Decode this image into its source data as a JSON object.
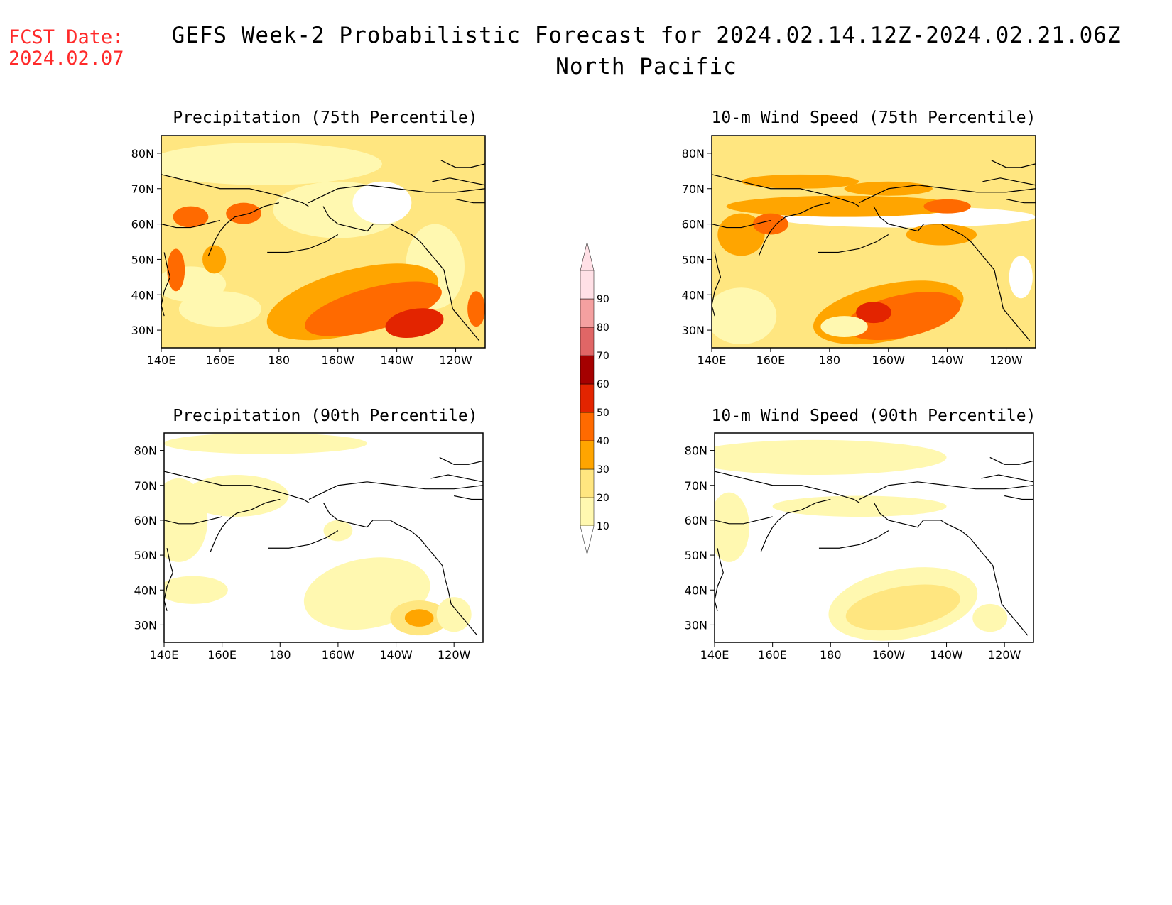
{
  "header": {
    "fcst_label": "FCST Date:",
    "fcst_date": "2024.02.07",
    "title_line1": "GEFS Week-2 Probabilistic Forecast for 2024.02.14.12Z-2024.02.21.06Z",
    "title_line2": "North Pacific"
  },
  "panels": [
    {
      "id": "p75",
      "title": "Precipitation (75th Percentile)"
    },
    {
      "id": "w75",
      "title": "10-m Wind Speed (75th Percentile)"
    },
    {
      "id": "p90",
      "title": "Precipitation (90th Percentile)"
    },
    {
      "id": "w90",
      "title": "10-m Wind Speed (90th Percentile)"
    }
  ],
  "axes": {
    "lat_labels": [
      "80N",
      "70N",
      "60N",
      "50N",
      "40N",
      "30N"
    ],
    "lat_values": [
      80,
      70,
      60,
      50,
      40,
      30
    ],
    "lon_labels": [
      "140E",
      "160E",
      "180",
      "160W",
      "140W",
      "120W"
    ],
    "lon_values": [
      140,
      160,
      180,
      200,
      220,
      240
    ],
    "lat_range": [
      25,
      85
    ],
    "lon_range": [
      140,
      250
    ]
  },
  "colorbar": {
    "levels": [
      "10",
      "20",
      "30",
      "40",
      "50",
      "60",
      "70",
      "80",
      "90"
    ],
    "colors": [
      "#fff8b0",
      "#ffe680",
      "#ffa500",
      "#ff6a00",
      "#e32400",
      "#a50000",
      "#e06666",
      "#f4a0a0",
      "#ffe0e6"
    ]
  }
}
